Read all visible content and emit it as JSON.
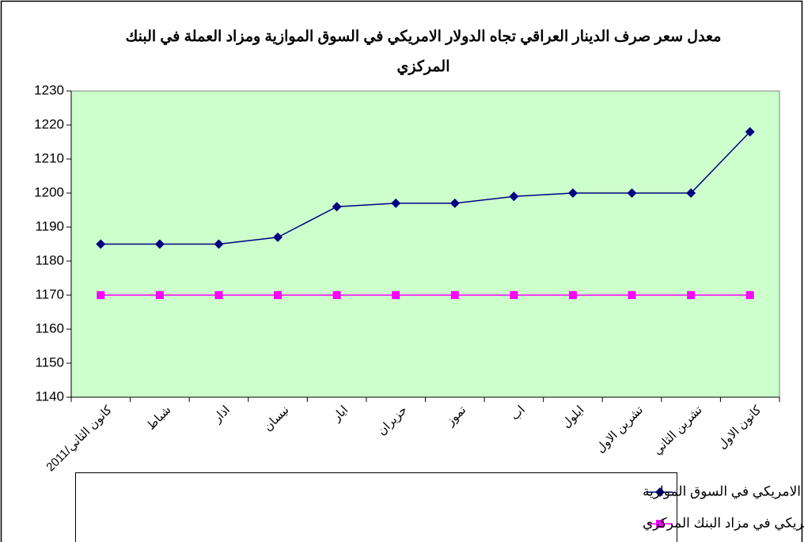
{
  "chart_data": {
    "type": "line",
    "title": "معدل سعر صرف الدينار العراقي تجاه الدولار الامريكي في السوق الموازية ومزاد العملة في البنك المركزي",
    "categories": [
      "كانون الثاني/2011",
      "شباط",
      "اذار",
      "نيسان",
      "ايار",
      "حزيران",
      "تموز",
      "اب",
      "ايلول",
      "تشرين الاول",
      "تشرين الثاني",
      "كانون الاول"
    ],
    "series": [
      {
        "name": "معدل سعر صرف الدينار العراقي تجاه الدولار الامريكي  في السوق الموازية",
        "color": "#000080",
        "marker": "diamond",
        "values": [
          1185,
          1185,
          1185,
          1187,
          1196,
          1197,
          1197,
          1199,
          1200,
          1200,
          1200,
          1218
        ]
      },
      {
        "name": "معدل سعر صرف الدينار العراقي تجاه الدولار الامريكي  في مزاد البنك المركزي",
        "color": "#ff00ff",
        "marker": "square",
        "values": [
          1170,
          1170,
          1170,
          1170,
          1170,
          1170,
          1170,
          1170,
          1170,
          1170,
          1170,
          1170
        ]
      }
    ],
    "ylim": [
      1140,
      1230
    ],
    "yticks": [
      1140,
      1150,
      1160,
      1170,
      1180,
      1190,
      1200,
      1210,
      1220,
      1230
    ],
    "grid": false,
    "plot_background": "#ccffcc"
  }
}
